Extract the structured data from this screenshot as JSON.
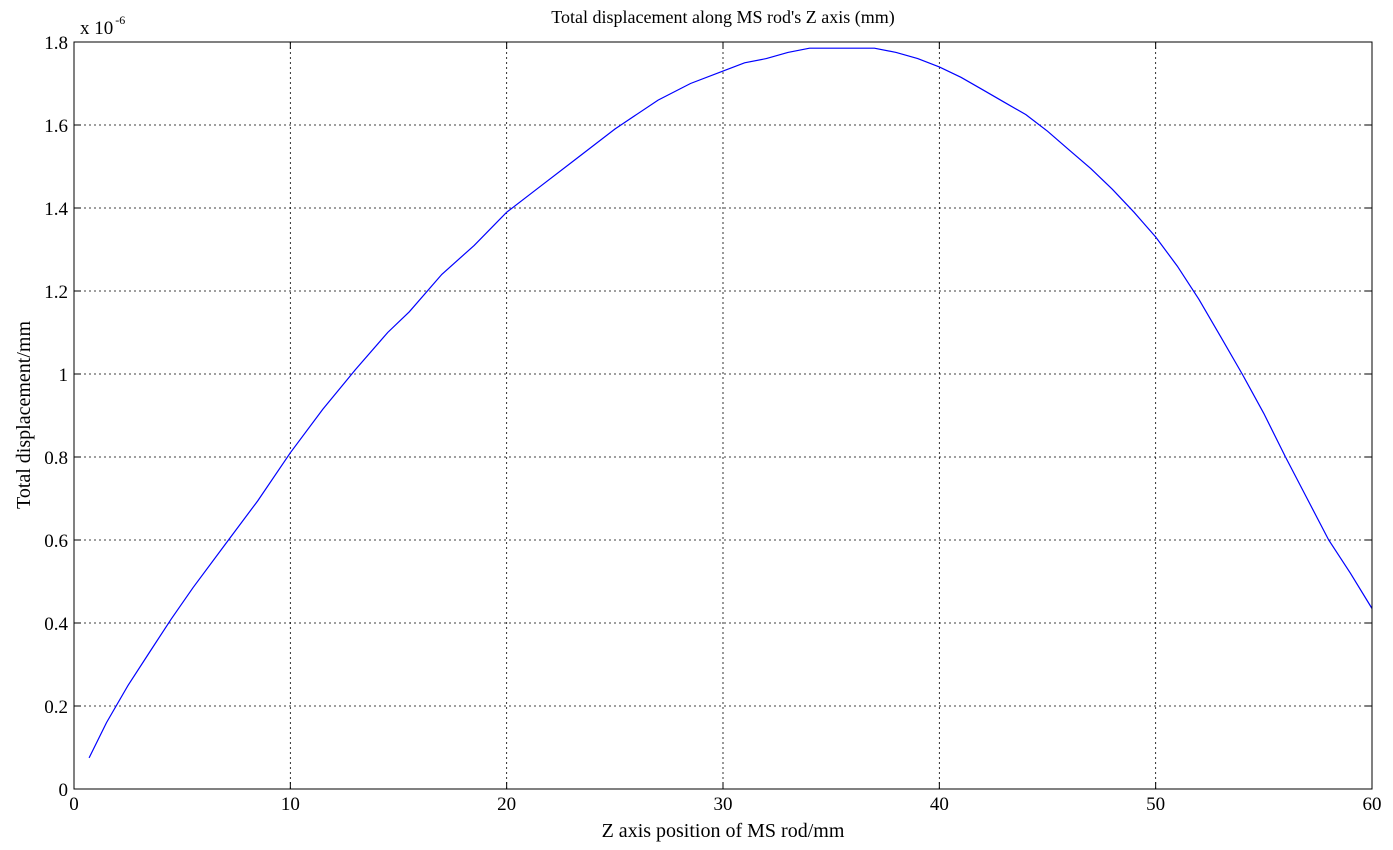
{
  "chart_data": {
    "type": "line",
    "title": "Total displacement along MS rod's Z axis (mm)",
    "xlabel": "Z axis position of MS rod/mm",
    "ylabel": "Total displacement/mm",
    "y_exponent_base": "x 10",
    "y_exponent_power": "-6",
    "xlim": [
      0,
      60
    ],
    "ylim": [
      0,
      1.8
    ],
    "x_ticks": [
      0,
      10,
      20,
      30,
      40,
      50,
      60
    ],
    "x_tick_labels": [
      "0",
      "10",
      "20",
      "30",
      "40",
      "50",
      "60"
    ],
    "y_ticks": [
      0,
      0.2,
      0.4,
      0.6,
      0.8,
      1.0,
      1.2,
      1.4,
      1.6,
      1.8
    ],
    "y_tick_labels": [
      "0",
      "0.2",
      "0.4",
      "0.6",
      "0.8",
      "1",
      "1.2",
      "1.4",
      "1.6",
      "1.8"
    ],
    "grid": true,
    "line_color": "#0000ff",
    "series": [
      {
        "x": [
          0.7,
          1.5,
          2.5,
          3.5,
          4.5,
          5.5,
          7,
          8.5,
          10,
          11.5,
          13,
          14.5,
          15.5,
          17,
          18.5,
          20,
          21.5,
          23,
          25,
          27,
          28.5,
          30,
          31,
          32,
          33,
          34,
          35,
          36,
          37,
          38,
          39,
          40,
          41,
          42,
          43,
          44,
          45,
          46,
          47,
          48,
          49,
          50,
          51,
          52,
          53,
          54,
          55,
          56,
          57,
          58,
          59,
          60
        ],
        "y": [
          0.075,
          0.16,
          0.25,
          0.33,
          0.41,
          0.485,
          0.59,
          0.695,
          0.81,
          0.915,
          1.01,
          1.1,
          1.15,
          1.24,
          1.31,
          1.39,
          1.45,
          1.51,
          1.59,
          1.66,
          1.7,
          1.73,
          1.75,
          1.76,
          1.775,
          1.785,
          1.785,
          1.785,
          1.785,
          1.775,
          1.76,
          1.74,
          1.715,
          1.685,
          1.655,
          1.625,
          1.585,
          1.54,
          1.495,
          1.445,
          1.39,
          1.33,
          1.26,
          1.18,
          1.09,
          1.0,
          0.905,
          0.8,
          0.7,
          0.6,
          0.52,
          0.435
        ]
      }
    ]
  }
}
